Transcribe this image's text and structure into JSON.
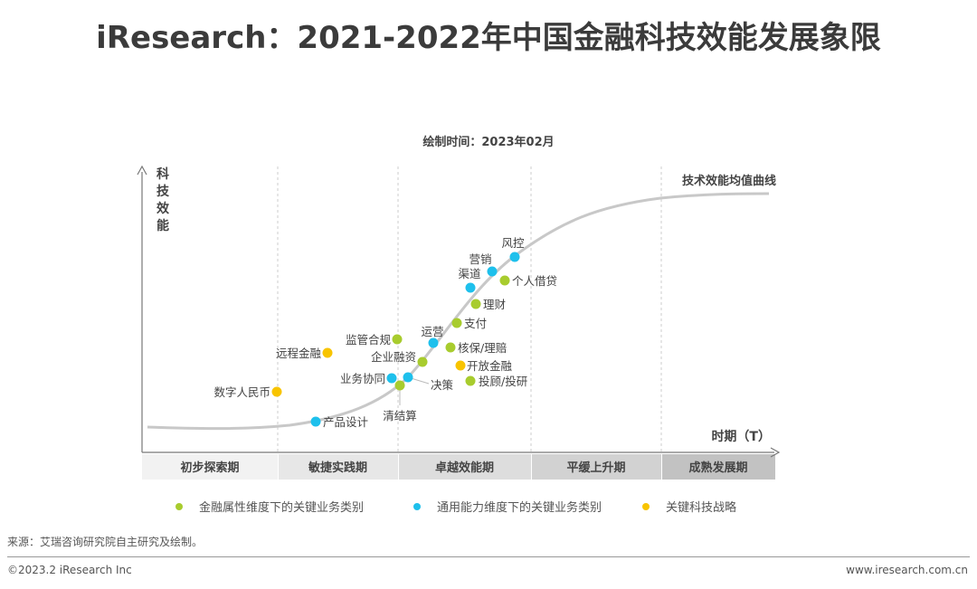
{
  "title": "iResearch：2021-2022年中国金融科技效能发展象限",
  "drawn_time": "绘制时间：2023年02月",
  "y_axis_label": "科技效能",
  "x_axis_label": "时期（T）",
  "curve_label": "技术效能均值曲线",
  "phases": [
    "初步探索期",
    "敏捷实践期",
    "卓越效能期",
    "平缓上升期",
    "成熟发展期"
  ],
  "colors": {
    "financial": "#a8cc2e",
    "general": "#1ec0ec",
    "strategy": "#f8c400",
    "curve": "#c8c8c8"
  },
  "legend": [
    {
      "category": "financial",
      "label": "金融属性维度下的关键业务类别"
    },
    {
      "category": "general",
      "label": "通用能力维度下的关键业务类别"
    },
    {
      "category": "strategy",
      "label": "关键科技战略"
    }
  ],
  "points": [
    {
      "label": "风控",
      "category": "general"
    },
    {
      "label": "营销",
      "category": "general"
    },
    {
      "label": "渠道",
      "category": "general"
    },
    {
      "label": "个人借贷",
      "category": "financial"
    },
    {
      "label": "理财",
      "category": "financial"
    },
    {
      "label": "支付",
      "category": "financial"
    },
    {
      "label": "运营",
      "category": "general"
    },
    {
      "label": "核保/理赔",
      "category": "financial"
    },
    {
      "label": "监管合规",
      "category": "financial"
    },
    {
      "label": "企业融资",
      "category": "financial"
    },
    {
      "label": "开放金融",
      "category": "strategy"
    },
    {
      "label": "业务协同",
      "category": "general"
    },
    {
      "label": "决策",
      "category": "general"
    },
    {
      "label": "投顾/投研",
      "category": "financial"
    },
    {
      "label": "清结算",
      "category": "financial"
    },
    {
      "label": "远程金融",
      "category": "strategy"
    },
    {
      "label": "数字人民币",
      "category": "strategy"
    },
    {
      "label": "产品设计",
      "category": "general"
    }
  ],
  "footer": {
    "source": "来源：艾瑞咨询研究院自主研究及绘制。",
    "copyright": "©2023.2 iResearch Inc",
    "website": "www.iresearch.com.cn"
  }
}
